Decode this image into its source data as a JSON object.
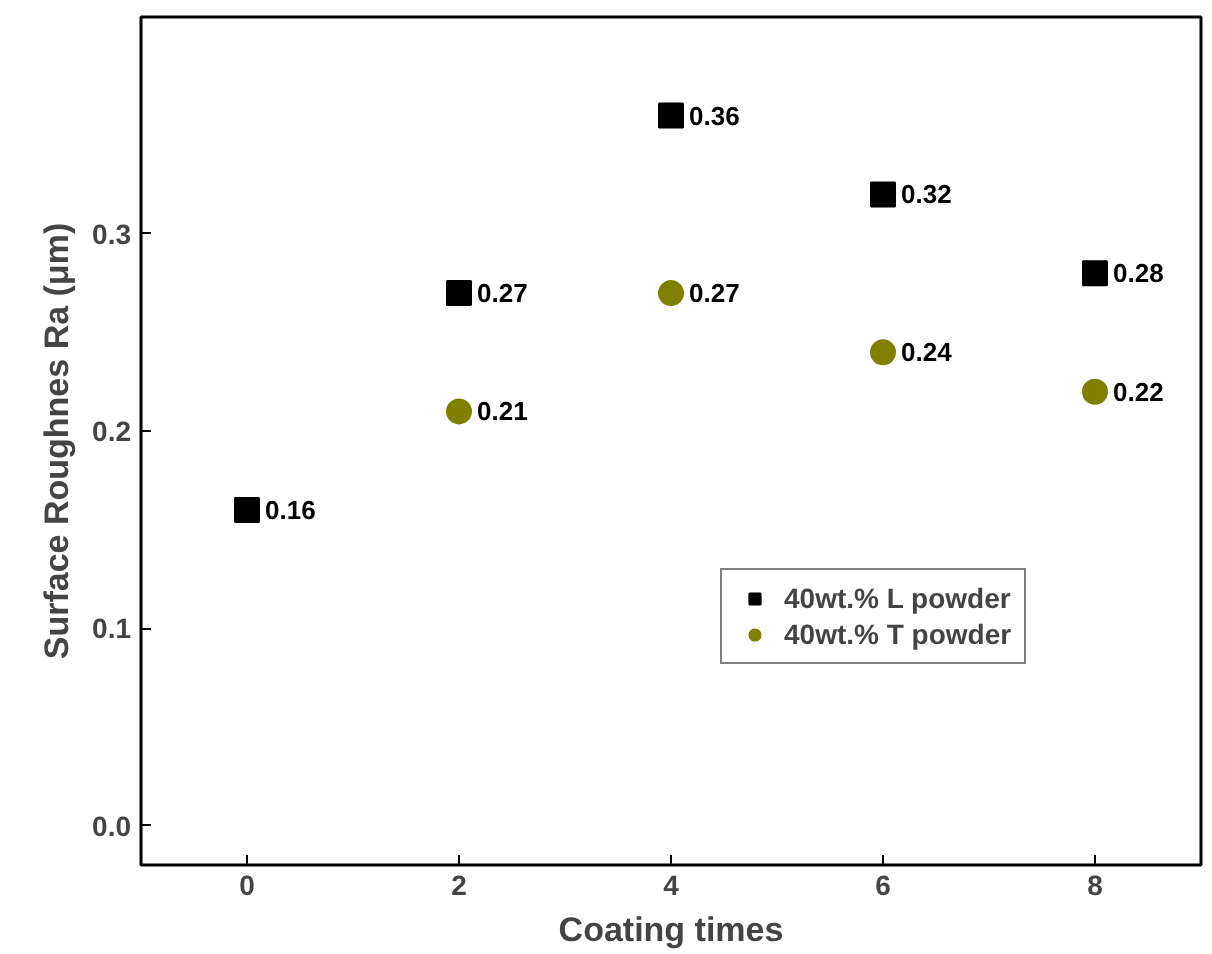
{
  "chart_data": {
    "type": "scatter",
    "xlabel": "Coating times",
    "ylabel": "Surface Roughnes Ra (μm)",
    "xlim": [
      -1,
      9
    ],
    "xticks": [
      0,
      2,
      4,
      6,
      8
    ],
    "ylim": [
      -0.02,
      0.41
    ],
    "yticks": [
      {
        "value": 0,
        "label": "0.0"
      },
      0.1,
      0.2,
      0.3
    ],
    "series": [
      {
        "name": "40wt.% L powder",
        "color": "#000000",
        "marker": "square",
        "x": [
          0,
          2,
          4,
          6,
          8
        ],
        "values": [
          0.16,
          0.27,
          0.36,
          0.32,
          0.28
        ]
      },
      {
        "name": "40wt.% T powder",
        "color": "#7f7f00",
        "marker": "circle",
        "x": [
          2,
          4,
          6,
          8
        ],
        "values": [
          0.21,
          0.27,
          0.24,
          0.22
        ]
      }
    ],
    "data_labels": true,
    "legend": "right",
    "grid": false
  }
}
